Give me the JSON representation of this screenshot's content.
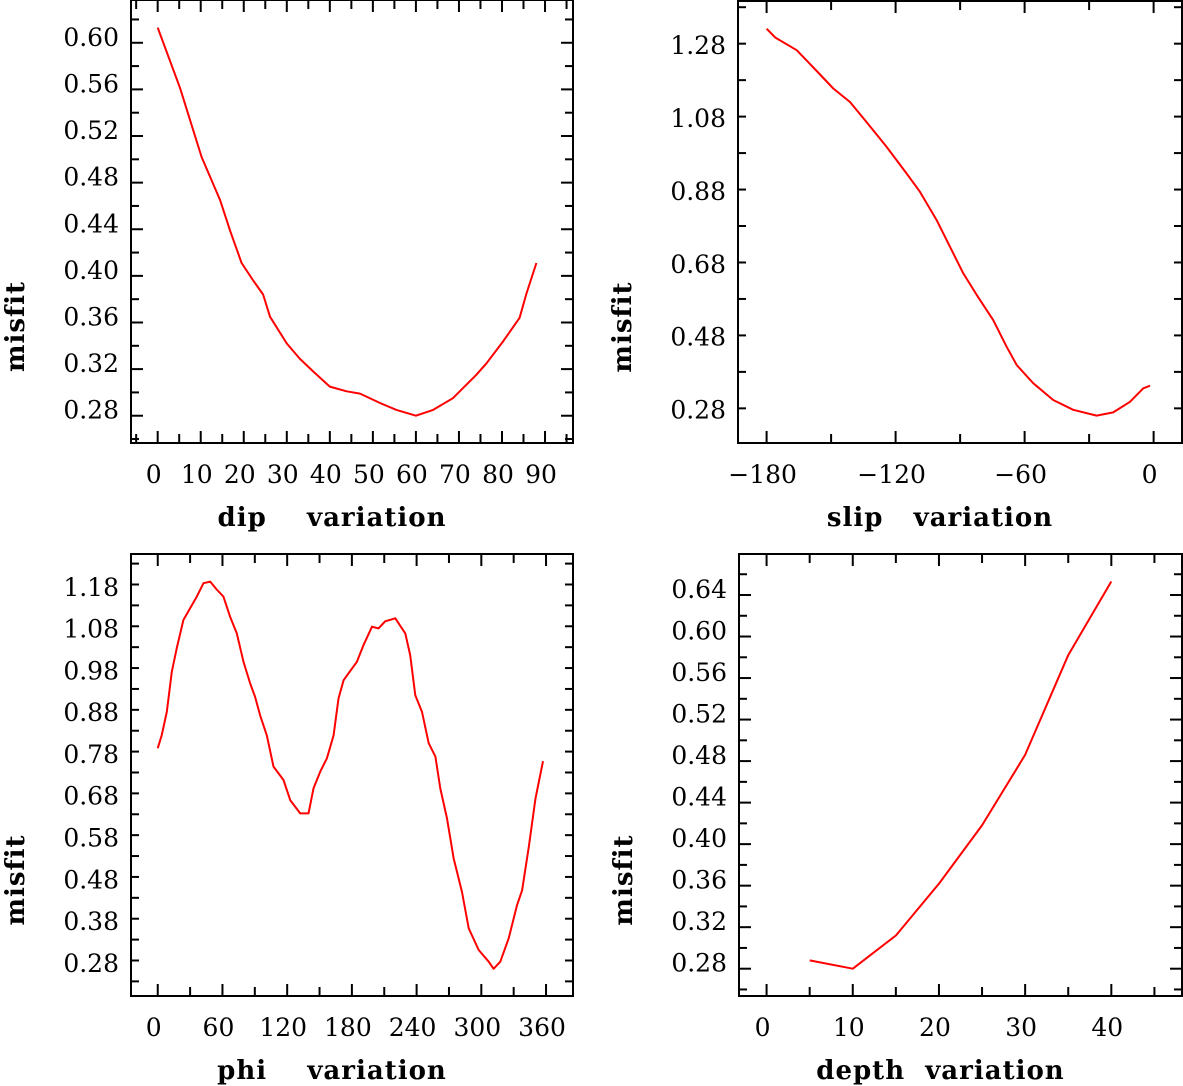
{
  "chart_data": [
    {
      "type": "line",
      "xlabel": "dip    variation",
      "ylabel": "misfit",
      "xlim": [
        -6.2,
        96.5
      ],
      "ylim": [
        0.2566,
        0.6367
      ],
      "xticks": [
        0,
        10,
        20,
        30,
        40,
        50,
        60,
        70,
        80,
        90
      ],
      "xtick_labels": [
        "0",
        "10",
        "20",
        "30",
        "40",
        "50",
        "60",
        "70",
        "80",
        "90"
      ],
      "xminor": 5,
      "yticks": [
        0.28,
        0.32,
        0.36,
        0.4,
        0.44,
        0.48,
        0.52,
        0.56,
        0.6
      ],
      "ytick_labels": [
        "0.28",
        "0.32",
        "0.36",
        "0.40",
        "0.44",
        "0.48",
        "0.52",
        "0.56",
        "0.60"
      ],
      "yminor": 0.02,
      "color": "#ff0000",
      "x": [
        0,
        5.2,
        10.2,
        14.5,
        16.8,
        19.5,
        22.2,
        24.5,
        26.1,
        30,
        33,
        36.1,
        40,
        43.9,
        47,
        51.6,
        55.5,
        60,
        64,
        68.6,
        74,
        76.4,
        80.3,
        84.1,
        85.7,
        88
      ],
      "y": [
        0.613,
        0.561,
        0.502,
        0.465,
        0.439,
        0.411,
        0.396,
        0.384,
        0.365,
        0.342,
        0.329,
        0.318,
        0.305,
        0.301,
        0.299,
        0.291,
        0.285,
        0.28,
        0.285,
        0.295,
        0.315,
        0.325,
        0.344,
        0.364,
        0.385,
        0.411
      ]
    },
    {
      "type": "line",
      "xlabel": "slip   variation",
      "ylabel": "misfit",
      "xlim": [
        -193.3,
        13.2
      ],
      "ylim": [
        0.205,
        1.417
      ],
      "xticks": [
        -180,
        -120,
        -60,
        0
      ],
      "xtick_labels": [
        "−180",
        "−120",
        "−60",
        "0"
      ],
      "xminor": 30,
      "yticks": [
        0.28,
        0.48,
        0.68,
        0.88,
        1.08,
        1.28
      ],
      "ytick_labels": [
        "0.28",
        "0.48",
        "0.68",
        "0.88",
        "1.08",
        "1.28"
      ],
      "yminor": 0.1,
      "color": "#ff0000",
      "x": [
        -180,
        -176,
        -166,
        -161.4,
        -156.7,
        -149,
        -141.2,
        -133.5,
        -124.2,
        -114.9,
        -108.7,
        -100.9,
        -94.7,
        -88.5,
        -82.3,
        -74.6,
        -68.4,
        -63.7,
        -56,
        -46.7,
        -37.4,
        -26.5,
        -18.8,
        -11,
        -4.8,
        -1.7
      ],
      "y": [
        1.341,
        1.317,
        1.282,
        1.254,
        1.225,
        1.177,
        1.14,
        1.085,
        1.017,
        0.944,
        0.894,
        0.816,
        0.743,
        0.67,
        0.611,
        0.542,
        0.469,
        0.419,
        0.369,
        0.323,
        0.296,
        0.28,
        0.289,
        0.318,
        0.355,
        0.362
      ]
    },
    {
      "type": "line",
      "xlabel": "phi    variation",
      "ylabel": "misfit",
      "xlim": [
        -24.8,
        385
      ],
      "ylim": [
        0.215,
        1.273
      ],
      "xticks": [
        0,
        60,
        120,
        180,
        240,
        300,
        360
      ],
      "xtick_labels": [
        "0",
        "60",
        "120",
        "180",
        "240",
        "300",
        "360"
      ],
      "xminor": 30,
      "yticks": [
        0.28,
        0.38,
        0.48,
        0.58,
        0.68,
        0.78,
        0.88,
        0.98,
        1.08,
        1.18
      ],
      "ytick_labels": [
        "0.28",
        "0.38",
        "0.48",
        "0.58",
        "0.68",
        "0.78",
        "0.88",
        "0.98",
        "1.08",
        "1.18"
      ],
      "yminor": 0.05,
      "color": "#ff0000",
      "x": [
        0,
        3.7,
        8.4,
        13,
        17.6,
        23.8,
        30,
        36.2,
        42.4,
        48.6,
        54.7,
        60.9,
        67.1,
        73.3,
        79.5,
        85.7,
        90.3,
        94.9,
        101.1,
        107.3,
        116.6,
        122.8,
        132.1,
        139.8,
        144.4,
        150.6,
        156.8,
        163,
        167.6,
        172.3,
        178.4,
        184.6,
        190.8,
        198.6,
        204.7,
        210.9,
        220.2,
        229.5,
        234.1,
        238.8,
        245,
        251.2,
        257.4,
        262,
        268.2,
        274.4,
        282.1,
        288.3,
        297.6,
        306.8,
        311.4,
        317.6,
        325.4,
        333.1,
        337.8,
        344,
        350.2,
        357.2
      ],
      "y": [
        0.808,
        0.839,
        0.895,
        0.991,
        1.047,
        1.115,
        1.143,
        1.171,
        1.203,
        1.207,
        1.188,
        1.171,
        1.123,
        1.083,
        1.015,
        0.963,
        0.931,
        0.887,
        0.839,
        0.764,
        0.732,
        0.684,
        0.652,
        0.652,
        0.712,
        0.752,
        0.784,
        0.839,
        0.927,
        0.971,
        0.993,
        1.015,
        1.055,
        1.099,
        1.095,
        1.112,
        1.119,
        1.083,
        1.031,
        0.935,
        0.895,
        0.82,
        0.788,
        0.712,
        0.64,
        0.544,
        0.464,
        0.377,
        0.325,
        0.297,
        0.28,
        0.297,
        0.353,
        0.432,
        0.468,
        0.572,
        0.688,
        0.777
      ]
    },
    {
      "type": "line",
      "xlabel": "depth  variation",
      "ylabel": "misfit",
      "xlim": [
        -3.2,
        48.2
      ],
      "ylim": [
        0.2537,
        0.6795
      ],
      "xticks": [
        0,
        10,
        20,
        30,
        40
      ],
      "xtick_labels": [
        "0",
        "10",
        "20",
        "30",
        "40"
      ],
      "xminor": 5,
      "yticks": [
        0.28,
        0.32,
        0.36,
        0.4,
        0.44,
        0.48,
        0.52,
        0.56,
        0.6,
        0.64
      ],
      "ytick_labels": [
        "0.28",
        "0.32",
        "0.36",
        "0.40",
        "0.44",
        "0.48",
        "0.52",
        "0.56",
        "0.60",
        "0.64"
      ],
      "yminor": 0.02,
      "color": "#ff0000",
      "x": [
        5,
        10,
        15,
        20,
        25,
        30,
        35,
        40
      ],
      "y": [
        0.288,
        0.28,
        0.312,
        0.362,
        0.418,
        0.486,
        0.582,
        0.653
      ]
    }
  ]
}
